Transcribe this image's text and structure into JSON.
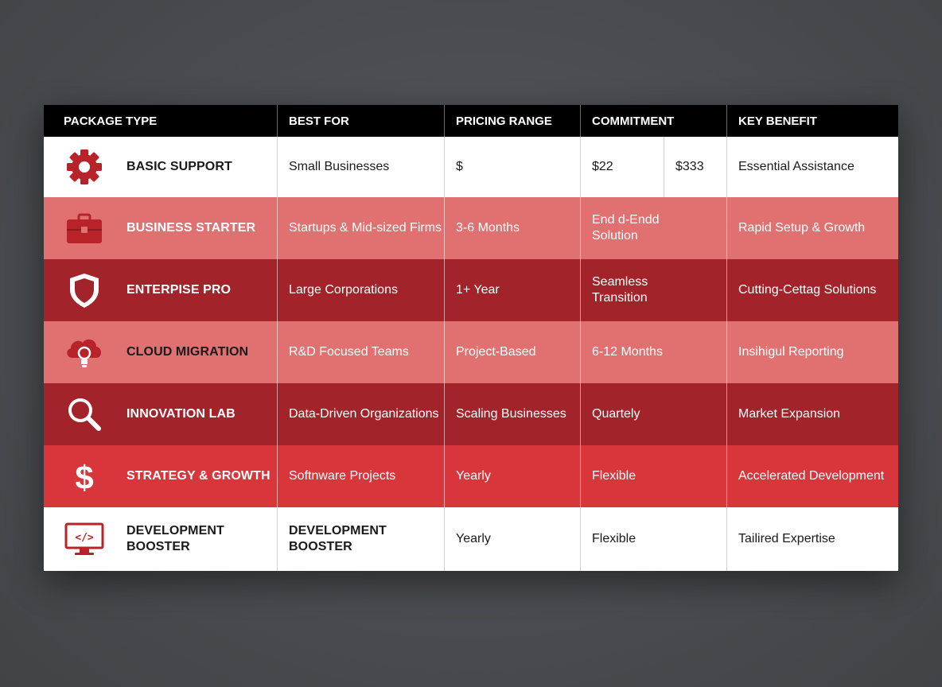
{
  "headers": [
    "PACKAGE TYPE",
    "BEST FOR",
    "PRICING RANGE",
    "COMMITMENT",
    "KEY BENEFIT"
  ],
  "colors": {
    "header": "#000000",
    "white_row": "#ffffff",
    "light_row": "#e07170",
    "dark_row": "#a3232a",
    "red_row": "#d9363c",
    "icon_red": "#b8232a"
  },
  "rows": [
    {
      "icon": "gear-icon",
      "package": "BASIC SUPPORT",
      "best_for": "Small Businesses",
      "pricing": "$",
      "commitment_a": "$22",
      "commitment_b": "$333",
      "benefit": "Essential Assistance"
    },
    {
      "icon": "briefcase-icon",
      "package": "BUSINESS STARTER",
      "best_for": "Startups & Mid-sized Firms",
      "pricing": "3-6 Months",
      "commitment": "End d-Endd Solution",
      "benefit": "Rapid Setup & Growth"
    },
    {
      "icon": "shield-icon",
      "package": "ENTERPISE PRO",
      "best_for": "Large Corporations",
      "pricing": "1+ Year",
      "commitment": "Seamless Transition",
      "benefit": "Cutting-Cettag Solutions"
    },
    {
      "icon": "cloud-lightbulb-icon",
      "package": "CLOUD MIGRATION",
      "best_for": "R&D Focused Teams",
      "pricing": "Project-Based",
      "commitment": "6-12 Months",
      "benefit": "Insihigul Reporting"
    },
    {
      "icon": "magnifier-icon",
      "package": "INNOVATION LAB",
      "best_for": "Data-Driven Organizations",
      "pricing": "Scaling Businesses",
      "commitment": "Quartely",
      "benefit": "Market Expansion"
    },
    {
      "icon": "dollar-icon",
      "package": "STRATEGY & GROWTH",
      "best_for": "Softnware Projects",
      "pricing": "Yearly",
      "commitment": "Flexible",
      "benefit": "Accelerated Development"
    },
    {
      "icon": "monitor-code-icon",
      "package": "DEVELOPMENT BOOSTER",
      "best_for": "DEVELOPMENT BOOSTER",
      "pricing": "Yearly",
      "commitment": "Flexible",
      "benefit": "Tailired Expertise"
    }
  ]
}
